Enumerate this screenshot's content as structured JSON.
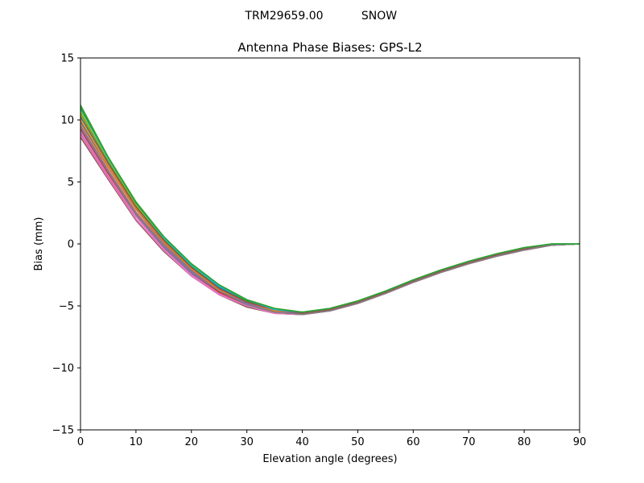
{
  "figure": {
    "suptitle_left": "TRM29659.00",
    "suptitle_right": "SNOW"
  },
  "chart_data": {
    "type": "line",
    "title": "Antenna Phase Biases: GPS-L2",
    "xlabel": "Elevation angle (degrees)",
    "ylabel": "Bias (mm)",
    "xlim": [
      0,
      90
    ],
    "ylim": [
      -15,
      15
    ],
    "xticks": [
      0,
      10,
      20,
      30,
      40,
      50,
      60,
      70,
      80,
      90
    ],
    "yticks": [
      -15,
      -10,
      -5,
      0,
      5,
      10,
      15
    ],
    "ytick_labels": [
      "−15",
      "−10",
      "−5",
      "0",
      "5",
      "10",
      "15"
    ],
    "xtick_labels": [
      "0",
      "10",
      "20",
      "30",
      "40",
      "50",
      "60",
      "70",
      "80",
      "90"
    ],
    "grid": false,
    "legend": "none",
    "x": [
      0,
      5,
      10,
      15,
      20,
      25,
      30,
      35,
      40,
      45,
      50,
      55,
      60,
      65,
      70,
      75,
      80,
      85,
      90
    ],
    "series": [
      {
        "color": "#1f77b4",
        "values": [
          10.8,
          6.9,
          3.2,
          0.4,
          -1.8,
          -3.5,
          -4.6,
          -5.3,
          -5.6,
          -5.3,
          -4.7,
          -3.9,
          -3.0,
          -2.2,
          -1.5,
          -0.9,
          -0.4,
          -0.1,
          0.0
        ]
      },
      {
        "color": "#ff7f0e",
        "values": [
          9.6,
          6.0,
          2.6,
          0.0,
          -2.2,
          -3.8,
          -4.8,
          -5.4,
          -5.6,
          -5.3,
          -4.7,
          -3.9,
          -3.0,
          -2.2,
          -1.5,
          -0.9,
          -0.4,
          -0.1,
          0.0
        ]
      },
      {
        "color": "#2ca02c",
        "values": [
          11.2,
          7.0,
          3.4,
          0.6,
          -1.6,
          -3.3,
          -4.5,
          -5.2,
          -5.5,
          -5.2,
          -4.6,
          -3.8,
          -2.9,
          -2.1,
          -1.4,
          -0.8,
          -0.3,
          0.0,
          0.0
        ]
      },
      {
        "color": "#d62728",
        "values": [
          8.9,
          5.4,
          2.0,
          -0.5,
          -2.5,
          -4.0,
          -5.0,
          -5.6,
          -5.7,
          -5.4,
          -4.8,
          -4.0,
          -3.1,
          -2.3,
          -1.6,
          -1.0,
          -0.5,
          -0.1,
          0.0
        ]
      },
      {
        "color": "#9467bd",
        "values": [
          9.2,
          5.6,
          2.3,
          -0.3,
          -2.4,
          -3.9,
          -4.9,
          -5.5,
          -5.7,
          -5.4,
          -4.8,
          -4.0,
          -3.1,
          -2.3,
          -1.6,
          -1.0,
          -0.5,
          -0.1,
          0.0
        ]
      },
      {
        "color": "#8c564b",
        "values": [
          8.6,
          5.2,
          1.9,
          -0.6,
          -2.6,
          -4.1,
          -5.1,
          -5.6,
          -5.7,
          -5.4,
          -4.8,
          -4.0,
          -3.1,
          -2.3,
          -1.6,
          -1.0,
          -0.5,
          -0.1,
          0.0
        ]
      },
      {
        "color": "#e377c2",
        "values": [
          9.0,
          5.5,
          2.2,
          -0.4,
          -2.5,
          -4.0,
          -5.0,
          -5.6,
          -5.7,
          -5.4,
          -4.8,
          -4.0,
          -3.1,
          -2.3,
          -1.6,
          -1.0,
          -0.5,
          -0.1,
          0.0
        ]
      },
      {
        "color": "#7f7f7f",
        "values": [
          9.8,
          6.2,
          2.8,
          0.1,
          -2.1,
          -3.7,
          -4.8,
          -5.4,
          -5.6,
          -5.3,
          -4.7,
          -3.9,
          -3.0,
          -2.2,
          -1.5,
          -0.9,
          -0.4,
          -0.1,
          0.0
        ]
      },
      {
        "color": "#bcbd22",
        "values": [
          10.5,
          6.6,
          3.0,
          0.3,
          -1.9,
          -3.6,
          -4.7,
          -5.3,
          -5.5,
          -5.2,
          -4.6,
          -3.8,
          -2.9,
          -2.1,
          -1.4,
          -0.8,
          -0.3,
          0.0,
          0.0
        ]
      },
      {
        "color": "#17becf",
        "values": [
          10.2,
          6.5,
          3.0,
          0.2,
          -2.0,
          -3.6,
          -4.7,
          -5.4,
          -5.6,
          -5.3,
          -4.7,
          -3.9,
          -3.0,
          -2.2,
          -1.5,
          -0.9,
          -0.4,
          -0.1,
          0.0
        ]
      },
      {
        "color": "#1f77b4",
        "values": [
          9.9,
          6.3,
          2.9,
          0.2,
          -2.0,
          -3.6,
          -4.7,
          -5.4,
          -5.6,
          -5.3,
          -4.7,
          -3.9,
          -3.0,
          -2.2,
          -1.5,
          -0.9,
          -0.4,
          -0.1,
          0.0
        ]
      },
      {
        "color": "#ff7f0e",
        "values": [
          10.0,
          6.3,
          2.9,
          0.2,
          -2.0,
          -3.7,
          -4.7,
          -5.4,
          -5.6,
          -5.3,
          -4.7,
          -3.9,
          -3.0,
          -2.2,
          -1.5,
          -0.9,
          -0.4,
          -0.1,
          0.0
        ]
      },
      {
        "color": "#2ca02c",
        "values": [
          10.6,
          6.7,
          3.1,
          0.4,
          -1.8,
          -3.4,
          -4.6,
          -5.3,
          -5.5,
          -5.2,
          -4.6,
          -3.8,
          -2.9,
          -2.1,
          -1.4,
          -0.8,
          -0.3,
          0.0,
          0.0
        ]
      },
      {
        "color": "#d62728",
        "values": [
          9.3,
          5.7,
          2.4,
          -0.2,
          -2.3,
          -3.9,
          -4.9,
          -5.5,
          -5.7,
          -5.4,
          -4.8,
          -4.0,
          -3.1,
          -2.3,
          -1.6,
          -1.0,
          -0.5,
          -0.1,
          0.0
        ]
      },
      {
        "color": "#9467bd",
        "values": [
          9.5,
          5.9,
          2.5,
          -0.1,
          -2.2,
          -3.8,
          -4.8,
          -5.5,
          -5.6,
          -5.3,
          -4.7,
          -3.9,
          -3.0,
          -2.2,
          -1.5,
          -0.9,
          -0.4,
          -0.1,
          0.0
        ]
      },
      {
        "color": "#8c564b",
        "values": [
          10.3,
          6.5,
          3.0,
          0.3,
          -1.9,
          -3.6,
          -4.7,
          -5.3,
          -5.6,
          -5.3,
          -4.7,
          -3.9,
          -3.0,
          -2.2,
          -1.5,
          -0.9,
          -0.4,
          -0.1,
          0.0
        ]
      },
      {
        "color": "#e377c2",
        "values": [
          8.8,
          5.3,
          2.0,
          -0.5,
          -2.6,
          -4.1,
          -5.0,
          -5.6,
          -5.7,
          -5.4,
          -4.8,
          -4.0,
          -3.1,
          -2.3,
          -1.6,
          -1.0,
          -0.5,
          -0.1,
          0.0
        ]
      },
      {
        "color": "#7f7f7f",
        "values": [
          9.4,
          5.8,
          2.4,
          -0.2,
          -2.3,
          -3.8,
          -4.9,
          -5.5,
          -5.7,
          -5.4,
          -4.8,
          -4.0,
          -3.1,
          -2.3,
          -1.6,
          -1.0,
          -0.5,
          -0.1,
          0.0
        ]
      },
      {
        "color": "#bcbd22",
        "values": [
          10.7,
          6.8,
          3.2,
          0.5,
          -1.7,
          -3.4,
          -4.5,
          -5.2,
          -5.5,
          -5.2,
          -4.6,
          -3.8,
          -2.9,
          -2.1,
          -1.4,
          -0.8,
          -0.3,
          0.0,
          0.0
        ]
      },
      {
        "color": "#17becf",
        "values": [
          10.9,
          6.9,
          3.3,
          0.5,
          -1.7,
          -3.4,
          -4.5,
          -5.3,
          -5.5,
          -5.2,
          -4.6,
          -3.8,
          -2.9,
          -2.1,
          -1.4,
          -0.8,
          -0.3,
          0.0,
          0.0
        ]
      },
      {
        "color": "#2ca02c",
        "values": [
          11.0,
          7.0,
          3.3,
          0.6,
          -1.6,
          -3.3,
          -4.5,
          -5.2,
          -5.5,
          -5.2,
          -4.6,
          -3.8,
          -2.9,
          -2.1,
          -1.4,
          -0.8,
          -0.3,
          0.0,
          0.0
        ]
      }
    ]
  }
}
